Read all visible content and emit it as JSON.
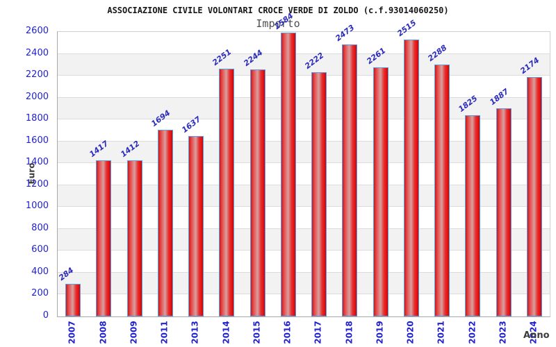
{
  "chart_data": {
    "type": "bar",
    "title": "ASSOCIAZIONE CIVILE VOLONTARI CROCE VERDE DI ZOLDO (c.f.93014060250)",
    "subtitle": "Importo",
    "xlabel": "Anno",
    "ylabel": "Euro",
    "categories": [
      "2007",
      "2008",
      "2009",
      "2011",
      "2013",
      "2014",
      "2015",
      "2016",
      "2017",
      "2018",
      "2019",
      "2020",
      "2021",
      "2022",
      "2023",
      "2024"
    ],
    "values": [
      284,
      1417,
      1412,
      1694,
      1637,
      2251,
      2244,
      2584,
      2222,
      2473,
      2261,
      2515,
      2288,
      1825,
      1887,
      2174
    ],
    "ylim": [
      0,
      2600
    ],
    "ytick_step": 200,
    "grid": true,
    "legend_position": "none",
    "colors": {
      "bar_fill": "#e02020",
      "bar_border": "#5c9fe8",
      "value_label": "#2b2bbd",
      "tick_label": "#2121cc",
      "band_gray": "#f2f2f2",
      "gridline": "#dcdcdc",
      "title": "#161616",
      "subtitle": "#4f4f4f",
      "axis_title": "#3c3c3c"
    }
  }
}
